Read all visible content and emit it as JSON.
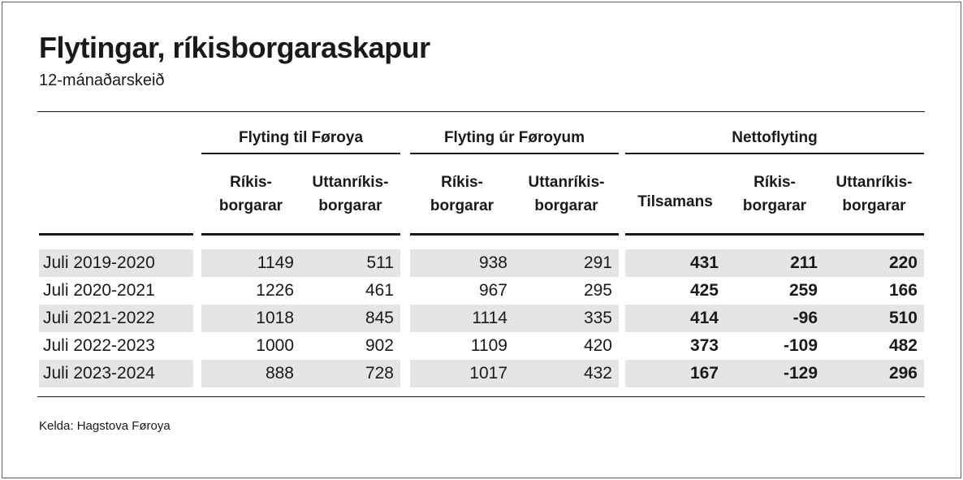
{
  "page": {
    "title": "Flytingar, ríkisborgaraskapur",
    "subtitle": "12-mánaðarskeið",
    "source": "Kelda: Hagstova Føroya"
  },
  "colors": {
    "text": "#1a1a1a",
    "rule": "#1a1a1a",
    "row_shade": "#e5e5e5",
    "frame_border": "#5e5e5e"
  },
  "table": {
    "groups": [
      {
        "title": "Flyting til Føroya",
        "columns": [
          {
            "line1": "Ríkis-",
            "line2": "borgarar"
          },
          {
            "line1": "Uttanríkis-",
            "line2": "borgarar"
          }
        ]
      },
      {
        "title": "Flyting úr Føroyum",
        "columns": [
          {
            "line1": "Ríkis-",
            "line2": "borgarar"
          },
          {
            "line1": "Uttanríkis-",
            "line2": "borgarar"
          }
        ]
      },
      {
        "title": "Nettoflyting",
        "columns": [
          {
            "line1": "Tilsamans",
            "line2": ""
          },
          {
            "line1": "Ríkis-",
            "line2": "borgarar"
          },
          {
            "line1": "Uttanríkis-",
            "line2": "borgarar"
          }
        ]
      }
    ],
    "rows": [
      {
        "label": "Juli 2019-2020",
        "til": [
          "1149",
          "511"
        ],
        "ur": [
          "938",
          "291"
        ],
        "netto": [
          "431",
          "211",
          "220"
        ]
      },
      {
        "label": "Juli 2020-2021",
        "til": [
          "1226",
          "461"
        ],
        "ur": [
          "967",
          "295"
        ],
        "netto": [
          "425",
          "259",
          "166"
        ]
      },
      {
        "label": "Juli 2021-2022",
        "til": [
          "1018",
          "845"
        ],
        "ur": [
          "1114",
          "335"
        ],
        "netto": [
          "414",
          "-96",
          "510"
        ]
      },
      {
        "label": "Juli 2022-2023",
        "til": [
          "1000",
          "902"
        ],
        "ur": [
          "1109",
          "420"
        ],
        "netto": [
          "373",
          "-109",
          "482"
        ]
      },
      {
        "label": "Juli 2023-2024",
        "til": [
          "888",
          "728"
        ],
        "ur": [
          "1017",
          "432"
        ],
        "netto": [
          "167",
          "-129",
          "296"
        ]
      }
    ]
  },
  "chart_data": {
    "type": "table",
    "title": "Flytingar, ríkisborgaraskapur",
    "subtitle": "12-mánaðarskeið",
    "source": "Kelda: Hagstova Føroya",
    "column_groups": [
      "Flyting til Føroya",
      "Flyting úr Føroyum",
      "Nettoflyting"
    ],
    "columns": [
      "Flyting til Føroya – Ríkisborgarar",
      "Flyting til Føroya – Uttanríkisborgarar",
      "Flyting úr Føroyum – Ríkisborgarar",
      "Flyting úr Føroyum – Uttanríkisborgarar",
      "Nettoflyting – Tilsamans",
      "Nettoflyting – Ríkisborgarar",
      "Nettoflyting – Uttanríkisborgarar"
    ],
    "rows": [
      {
        "period": "Juli 2019-2020",
        "values": [
          1149,
          511,
          938,
          291,
          431,
          211,
          220
        ]
      },
      {
        "period": "Juli 2020-2021",
        "values": [
          1226,
          461,
          967,
          295,
          425,
          259,
          166
        ]
      },
      {
        "period": "Juli 2021-2022",
        "values": [
          1018,
          845,
          1114,
          335,
          414,
          -96,
          510
        ]
      },
      {
        "period": "Juli 2022-2023",
        "values": [
          1000,
          902,
          1109,
          420,
          373,
          -109,
          482
        ]
      },
      {
        "period": "Juli 2023-2024",
        "values": [
          888,
          728,
          1017,
          432,
          167,
          -129,
          296
        ]
      }
    ]
  }
}
